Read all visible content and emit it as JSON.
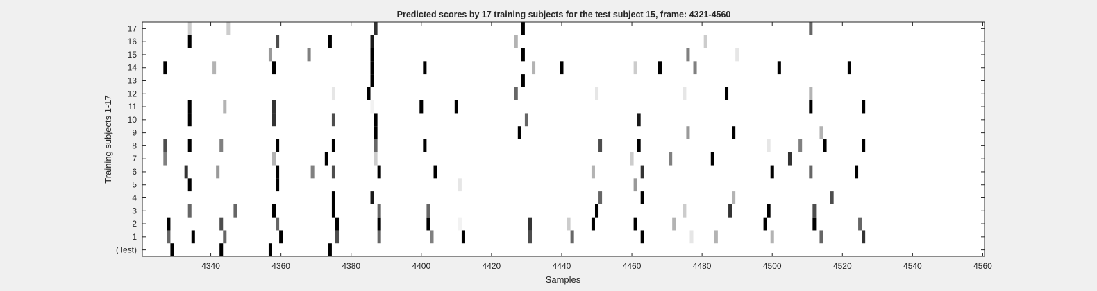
{
  "figure": {
    "background_color": "#f0f0f0",
    "axes_background_color": "#ffffff",
    "axes_border_color": "#262626"
  },
  "chart_data": {
    "type": "heatmap",
    "title": "Predicted scores by 17 training subjects for the test subject 15, frame: 4321-4560",
    "xlabel": "Samples",
    "ylabel": "Training subjects 1-17",
    "xlim": [
      4321,
      4560
    ],
    "x_ticks": [
      4340,
      4360,
      4380,
      4400,
      4420,
      4440,
      4460,
      4480,
      4500,
      4520,
      4540,
      4560
    ],
    "y_tick_labels": [
      "(Test)",
      "1",
      "2",
      "3",
      "4",
      "5",
      "6",
      "7",
      "8",
      "9",
      "10",
      "11",
      "12",
      "13",
      "14",
      "15",
      "16",
      "17"
    ],
    "grid": false,
    "value_range": [
      0,
      1
    ],
    "colormap": "gray (1 = black, 0 = white)",
    "rows": [
      {
        "label": "(Test)",
        "cells": [
          [
            4329,
            1.0
          ],
          [
            4343,
            1.0
          ],
          [
            4357,
            1.0
          ],
          [
            4374,
            1.0
          ]
        ]
      },
      {
        "label": "1",
        "cells": [
          [
            4328,
            0.6
          ],
          [
            4335,
            1.0
          ],
          [
            4344,
            0.6
          ],
          [
            4360,
            1.0
          ],
          [
            4376,
            0.7
          ],
          [
            4388,
            0.6
          ],
          [
            4403,
            0.5
          ],
          [
            4412,
            1.0
          ],
          [
            4431,
            0.7
          ],
          [
            4443,
            0.6
          ],
          [
            4463,
            1.0
          ],
          [
            4477,
            0.1
          ],
          [
            4484,
            0.3
          ],
          [
            4500,
            0.3
          ],
          [
            4514,
            0.6
          ],
          [
            4526,
            0.8
          ]
        ]
      },
      {
        "label": "2",
        "cells": [
          [
            4328,
            1.0
          ],
          [
            4343,
            0.7
          ],
          [
            4359,
            0.6
          ],
          [
            4376,
            1.0
          ],
          [
            4388,
            1.0
          ],
          [
            4402,
            1.0
          ],
          [
            4411,
            0.05
          ],
          [
            4431,
            0.8
          ],
          [
            4442,
            0.2
          ],
          [
            4449,
            1.0
          ],
          [
            4461,
            1.0
          ],
          [
            4472,
            0.3
          ],
          [
            4498,
            1.0
          ],
          [
            4512,
            1.0
          ],
          [
            4525,
            0.6
          ]
        ]
      },
      {
        "label": "3",
        "cells": [
          [
            4334,
            0.6
          ],
          [
            4347,
            0.6
          ],
          [
            4358,
            1.0
          ],
          [
            4375,
            1.0
          ],
          [
            4388,
            0.6
          ],
          [
            4402,
            0.6
          ],
          [
            4450,
            1.0
          ],
          [
            4475,
            0.2
          ],
          [
            4488,
            0.8
          ],
          [
            4499,
            1.0
          ],
          [
            4512,
            0.7
          ]
        ]
      },
      {
        "label": "4",
        "cells": [
          [
            4375,
            1.0
          ],
          [
            4386,
            0.9
          ],
          [
            4451,
            0.6
          ],
          [
            4463,
            1.0
          ],
          [
            4489,
            0.3
          ],
          [
            4517,
            0.7
          ]
        ]
      },
      {
        "label": "5",
        "cells": [
          [
            4334,
            1.0
          ],
          [
            4359,
            1.0
          ],
          [
            4411,
            0.1
          ],
          [
            4461,
            0.4
          ]
        ]
      },
      {
        "label": "6",
        "cells": [
          [
            4333,
            0.8
          ],
          [
            4342,
            0.4
          ],
          [
            4359,
            1.0
          ],
          [
            4369,
            0.5
          ],
          [
            4375,
            0.7
          ],
          [
            4388,
            1.0
          ],
          [
            4404,
            1.0
          ],
          [
            4449,
            0.3
          ],
          [
            4463,
            0.8
          ],
          [
            4500,
            1.0
          ],
          [
            4511,
            0.6
          ],
          [
            4524,
            1.0
          ]
        ]
      },
      {
        "label": "7",
        "cells": [
          [
            4327,
            0.5
          ],
          [
            4358,
            0.3
          ],
          [
            4373,
            1.0
          ],
          [
            4387,
            0.2
          ],
          [
            4460,
            0.2
          ],
          [
            4471,
            0.5
          ],
          [
            4483,
            1.0
          ],
          [
            4505,
            0.8
          ]
        ]
      },
      {
        "label": "8",
        "cells": [
          [
            4327,
            0.7
          ],
          [
            4334,
            1.0
          ],
          [
            4343,
            0.5
          ],
          [
            4359,
            1.0
          ],
          [
            4375,
            1.0
          ],
          [
            4387,
            0.6
          ],
          [
            4401,
            1.0
          ],
          [
            4451,
            0.7
          ],
          [
            4462,
            1.0
          ],
          [
            4499,
            0.1
          ],
          [
            4508,
            0.5
          ],
          [
            4515,
            1.0
          ],
          [
            4526,
            1.0
          ]
        ]
      },
      {
        "label": "9",
        "cells": [
          [
            4387,
            1.0
          ],
          [
            4428,
            1.0
          ],
          [
            4476,
            0.4
          ],
          [
            4489,
            1.0
          ],
          [
            4514,
            0.3
          ]
        ]
      },
      {
        "label": "10",
        "cells": [
          [
            4334,
            1.0
          ],
          [
            4358,
            0.8
          ],
          [
            4375,
            0.7
          ],
          [
            4387,
            1.0
          ],
          [
            4430,
            0.6
          ],
          [
            4462,
            0.9
          ]
        ]
      },
      {
        "label": "11",
        "cells": [
          [
            4334,
            1.0
          ],
          [
            4344,
            0.3
          ],
          [
            4358,
            0.8
          ],
          [
            4386,
            0.05
          ],
          [
            4400,
            1.0
          ],
          [
            4410,
            1.0
          ],
          [
            4511,
            1.0
          ],
          [
            4526,
            1.0
          ]
        ]
      },
      {
        "label": "12",
        "cells": [
          [
            4375,
            0.1
          ],
          [
            4385,
            1.0
          ],
          [
            4427,
            0.6
          ],
          [
            4450,
            0.1
          ],
          [
            4475,
            0.1
          ],
          [
            4487,
            1.0
          ],
          [
            4511,
            0.3
          ]
        ]
      },
      {
        "label": "13",
        "cells": [
          [
            4386,
            1.0
          ],
          [
            4429,
            1.0
          ]
        ]
      },
      {
        "label": "14",
        "cells": [
          [
            4327,
            1.0
          ],
          [
            4341,
            0.3
          ],
          [
            4358,
            1.0
          ],
          [
            4386,
            1.0
          ],
          [
            4401,
            1.0
          ],
          [
            4432,
            0.3
          ],
          [
            4440,
            1.0
          ],
          [
            4461,
            0.2
          ],
          [
            4468,
            1.0
          ],
          [
            4478,
            0.5
          ],
          [
            4502,
            1.0
          ],
          [
            4522,
            1.0
          ]
        ]
      },
      {
        "label": "15",
        "cells": [
          [
            4357,
            0.4
          ],
          [
            4368,
            0.5
          ],
          [
            4386,
            1.0
          ],
          [
            4429,
            1.0
          ],
          [
            4476,
            0.5
          ],
          [
            4490,
            0.1
          ]
        ]
      },
      {
        "label": "16",
        "cells": [
          [
            4334,
            1.0
          ],
          [
            4359,
            0.7
          ],
          [
            4374,
            1.0
          ],
          [
            4386,
            0.9
          ],
          [
            4427,
            0.3
          ],
          [
            4481,
            0.2
          ]
        ]
      },
      {
        "label": "17",
        "cells": [
          [
            4334,
            0.2
          ],
          [
            4345,
            0.2
          ],
          [
            4387,
            0.8
          ],
          [
            4429,
            1.0
          ],
          [
            4511,
            0.6
          ]
        ]
      }
    ]
  }
}
